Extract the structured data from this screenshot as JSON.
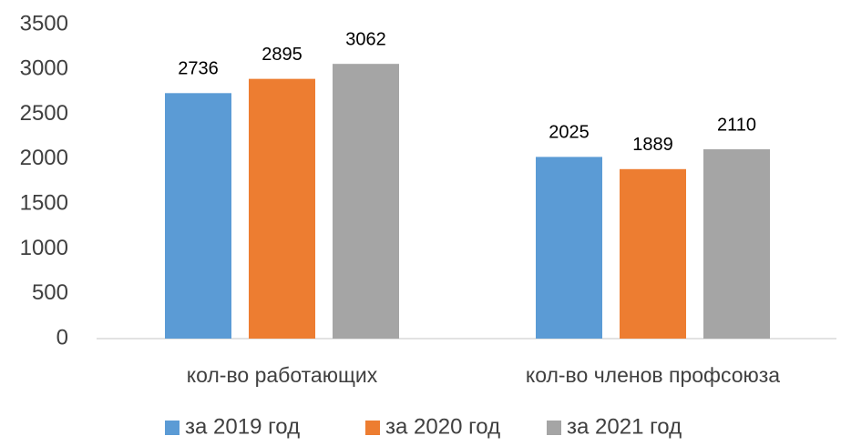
{
  "chart_data": {
    "type": "bar",
    "categories": [
      "кол-во работающих",
      "кол-во членов профсоюза"
    ],
    "series": [
      {
        "name": "за 2019 год",
        "color": "#5b9bd5",
        "values": [
          2736,
          2025
        ]
      },
      {
        "name": "за 2020 год",
        "color": "#ed7d31",
        "values": [
          2895,
          1889
        ]
      },
      {
        "name": "за 2021 год",
        "color": "#a5a5a5",
        "values": [
          3062,
          2110
        ]
      }
    ],
    "ylim": [
      0,
      3500
    ],
    "yticks": [
      0,
      500,
      1000,
      1500,
      2000,
      2500,
      3000,
      3500
    ],
    "grid": false,
    "legend": "bottom"
  }
}
